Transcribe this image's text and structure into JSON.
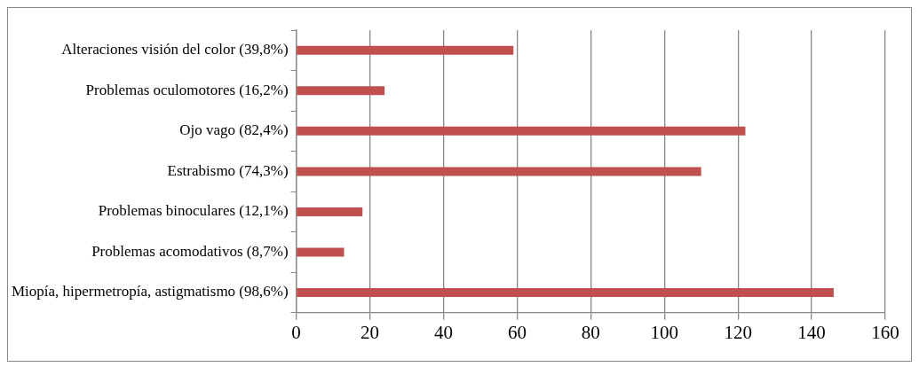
{
  "chart_data": {
    "type": "bar",
    "orientation": "horizontal",
    "categories": [
      "Alteraciones visión del color (39,8%)",
      "Problemas oculomotores (16,2%)",
      "Ojo vago (82,4%)",
      "Estrabismo (74,3%)",
      "Problemas binoculares (12,1%)",
      "Problemas acomodativos (8,7%)",
      "Miopía, hipermetropía, astigmatismo (98,6%)"
    ],
    "values": [
      59,
      24,
      122,
      110,
      18,
      13,
      146
    ],
    "color": "#c0504d",
    "xlim": [
      0,
      160
    ],
    "xticks": [
      0,
      20,
      40,
      60,
      80,
      100,
      120,
      140,
      160
    ],
    "grid": "x",
    "legend": false
  }
}
